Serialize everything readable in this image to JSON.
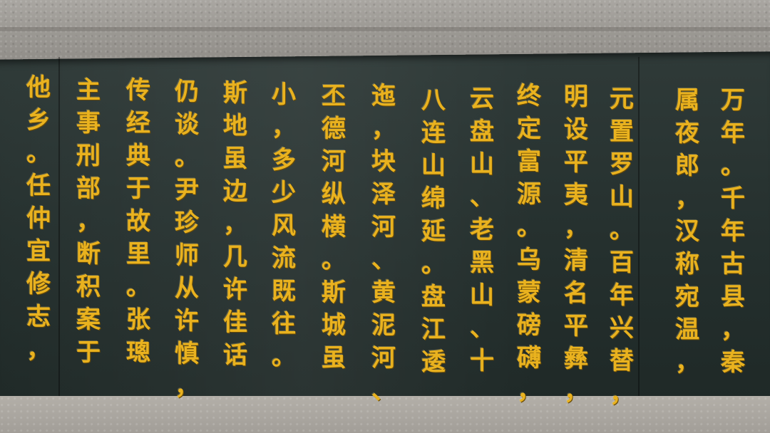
{
  "columns": [
    "万年。千年古县，秦",
    "属夜郎，汉称宛温，",
    "元置罗山。百年兴替，",
    "明设平夷，清名平彝，",
    "终定富源。乌蒙磅礴，",
    "云盘山、老黑山、十",
    "八连山绵延。盘江逶",
    "迤，块泽河、黄泥河、",
    "丕德河纵横。斯城虽",
    "小，多少风流既往。",
    "斯地虽边，几许佳话",
    "仍谈。尹珍师从许慎，",
    "传经典于故里。张璁",
    "主事刑部，断积案于",
    "他乡。任仲宜修志，"
  ],
  "colors": {
    "text": "#e9b21f",
    "tablet": "#25302e",
    "frame": "#9b9893"
  }
}
